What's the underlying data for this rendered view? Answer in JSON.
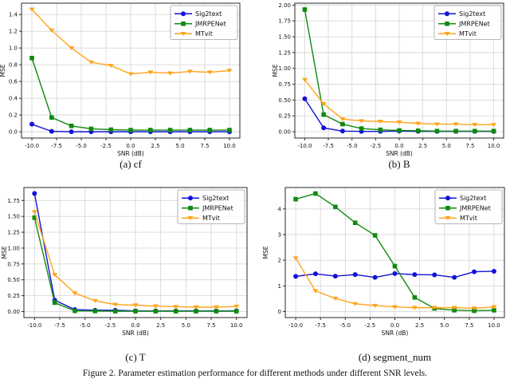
{
  "figure_caption": "Figure 2. Parameter estimation performance for different methods under different SNR levels.",
  "chart_data": [
    {
      "type": "line",
      "caption": "(a) cf",
      "xlabel": "SNR (dB)",
      "ylabel": "MSE",
      "x": [
        -10,
        -8,
        -6,
        -4,
        -2,
        0,
        2,
        4,
        6,
        8,
        10
      ],
      "xtick_labels": [
        "-10.0",
        "-7.5",
        "-5.0",
        "-2.5",
        "0.0",
        "2.5",
        "5.0",
        "7.5",
        "10.0"
      ],
      "ytick_labels": [
        "0.0",
        "0.2",
        "0.4",
        "0.6",
        "0.8",
        "1.0",
        "1.2",
        "1.4"
      ],
      "xlim": [
        -11.05,
        11.05
      ],
      "ylim": [
        -0.075,
        1.535
      ],
      "grid": true,
      "legend_position": "upper right",
      "series": [
        {
          "name": "Sig2text",
          "color": "#1212d9",
          "marker": "circle",
          "values": [
            0.09,
            0.005,
            0.0,
            0.0,
            0.0,
            0.0,
            0.0,
            0.0,
            0.0,
            0.0,
            0.0
          ]
        },
        {
          "name": "JMRPENet",
          "color": "#0e8a0e",
          "marker": "square",
          "values": [
            0.88,
            0.17,
            0.07,
            0.035,
            0.025,
            0.02,
            0.02,
            0.02,
            0.02,
            0.02,
            0.02
          ]
        },
        {
          "name": "MTvit",
          "color": "#ffa41c",
          "marker": "triangle-down",
          "values": [
            1.46,
            1.21,
            1.0,
            0.83,
            0.79,
            0.69,
            0.71,
            0.7,
            0.72,
            0.71,
            0.73
          ]
        }
      ]
    },
    {
      "type": "line",
      "caption": "(b) B",
      "xlabel": "SNR (dB)",
      "ylabel": "MSE",
      "x": [
        -10,
        -8,
        -6,
        -4,
        -2,
        0,
        2,
        4,
        6,
        8,
        10
      ],
      "xtick_labels": [
        "-10.0",
        "-7.5",
        "-5.0",
        "-2.5",
        "0.0",
        "2.5",
        "5.0",
        "7.5",
        "10.0"
      ],
      "ytick_labels": [
        "0.00",
        "0.25",
        "0.50",
        "0.75",
        "1.00",
        "1.25",
        "1.50",
        "1.75",
        "2.00"
      ],
      "xlim": [
        -11.05,
        11.05
      ],
      "ylim": [
        -0.1,
        2.03
      ],
      "grid": true,
      "legend_position": "upper right",
      "series": [
        {
          "name": "Sig2text",
          "color": "#1212d9",
          "marker": "circle",
          "values": [
            0.52,
            0.06,
            0.01,
            0.005,
            0.005,
            0.01,
            0.005,
            0.005,
            0.005,
            0.005,
            0.005
          ]
        },
        {
          "name": "JMRPENet",
          "color": "#0e8a0e",
          "marker": "square",
          "values": [
            1.93,
            0.27,
            0.12,
            0.05,
            0.03,
            0.02,
            0.015,
            0.01,
            0.01,
            0.01,
            0.01
          ]
        },
        {
          "name": "MTvit",
          "color": "#ffa41c",
          "marker": "triangle-down",
          "values": [
            0.82,
            0.44,
            0.2,
            0.17,
            0.16,
            0.15,
            0.13,
            0.12,
            0.12,
            0.11,
            0.11
          ]
        }
      ]
    },
    {
      "type": "line",
      "caption": "(c) T",
      "xlabel": "SNR (dB)",
      "ylabel": "MSE",
      "x": [
        -10,
        -8,
        -6,
        -4,
        -2,
        0,
        2,
        4,
        6,
        8,
        10
      ],
      "xtick_labels": [
        "-10.0",
        "-7.5",
        "-5.0",
        "-2.5",
        "0.0",
        "2.5",
        "5.0",
        "7.5",
        "10.0"
      ],
      "ytick_labels": [
        "0.00",
        "0.25",
        "0.50",
        "0.75",
        "1.00",
        "1.25",
        "1.50",
        "1.75"
      ],
      "xlim": [
        -11.05,
        11.05
      ],
      "ylim": [
        -0.095,
        1.955
      ],
      "grid": true,
      "legend_position": "upper right",
      "series": [
        {
          "name": "Sig2text",
          "color": "#1212d9",
          "marker": "circle",
          "values": [
            1.86,
            0.18,
            0.03,
            0.02,
            0.02,
            0.01,
            0.01,
            0.01,
            0.01,
            0.01,
            0.01
          ]
        },
        {
          "name": "JMRPENet",
          "color": "#0e8a0e",
          "marker": "square",
          "values": [
            1.48,
            0.14,
            0.01,
            0.008,
            0.005,
            0.005,
            0.005,
            0.005,
            0.005,
            0.005,
            0.005
          ]
        },
        {
          "name": "MTvit",
          "color": "#ffa41c",
          "marker": "triangle-down",
          "values": [
            1.57,
            0.58,
            0.29,
            0.17,
            0.11,
            0.1,
            0.085,
            0.075,
            0.07,
            0.07,
            0.08
          ]
        }
      ]
    },
    {
      "type": "line",
      "caption": "(d) segment_num",
      "xlabel": "SNR (dB)",
      "ylabel": "MSE",
      "x": [
        -10,
        -8,
        -6,
        -4,
        -2,
        0,
        2,
        4,
        6,
        8,
        10
      ],
      "xtick_labels": [
        "-10.0",
        "-7.5",
        "-5.0",
        "-2.5",
        "0.0",
        "2.5",
        "5.0",
        "7.5",
        "10.0"
      ],
      "ytick_labels": [
        "0",
        "1",
        "2",
        "3",
        "4"
      ],
      "xlim": [
        -11.05,
        11.05
      ],
      "ylim": [
        -0.235,
        4.835
      ],
      "grid": true,
      "legend_position": "upper right",
      "series": [
        {
          "name": "Sig2text",
          "color": "#1212d9",
          "marker": "circle",
          "values": [
            1.37,
            1.47,
            1.38,
            1.44,
            1.33,
            1.48,
            1.44,
            1.43,
            1.33,
            1.55,
            1.57
          ]
        },
        {
          "name": "JMRPENet",
          "color": "#0e8a0e",
          "marker": "square",
          "values": [
            4.38,
            4.6,
            4.08,
            3.46,
            2.97,
            1.77,
            0.55,
            0.12,
            0.05,
            0.03,
            0.05
          ]
        },
        {
          "name": "MTvit",
          "color": "#ffa41c",
          "marker": "triangle-down",
          "values": [
            2.08,
            0.8,
            0.51,
            0.3,
            0.23,
            0.18,
            0.15,
            0.15,
            0.15,
            0.13,
            0.18
          ]
        }
      ]
    }
  ]
}
